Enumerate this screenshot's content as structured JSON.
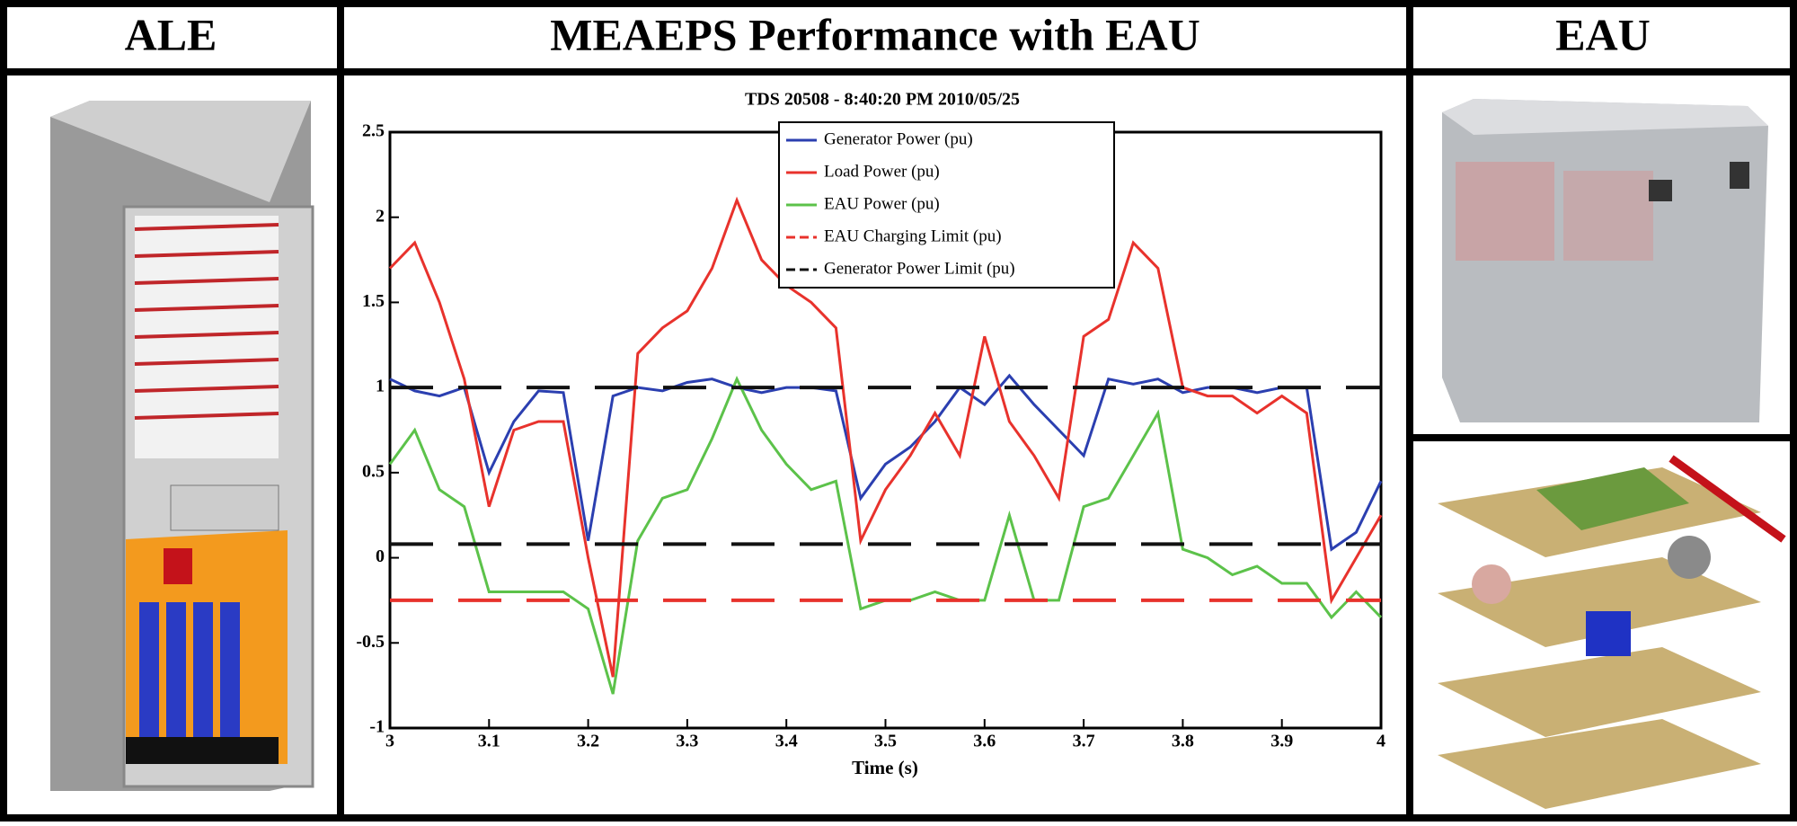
{
  "headers": {
    "left": "ALE",
    "middle": "MEAEPS Performance with EAU",
    "right": "EAU"
  },
  "chart_data": {
    "type": "line",
    "title": "TDS 20508 - 8:40:20 PM 2010/05/25",
    "xlabel": "Time (s)",
    "xlim": [
      3,
      4
    ],
    "xticks": [
      3,
      3.1,
      3.2,
      3.3,
      3.4,
      3.5,
      3.6,
      3.7,
      3.8,
      3.9,
      4
    ],
    "ylim": [
      -1,
      2.5
    ],
    "yticks": [
      -1,
      -0.5,
      0,
      0.5,
      1,
      1.5,
      2,
      2.5
    ],
    "x": [
      3,
      3.025,
      3.05,
      3.075,
      3.1,
      3.125,
      3.15,
      3.175,
      3.2,
      3.225,
      3.25,
      3.275,
      3.3,
      3.325,
      3.35,
      3.375,
      3.4,
      3.425,
      3.45,
      3.475,
      3.5,
      3.525,
      3.55,
      3.575,
      3.6,
      3.625,
      3.65,
      3.675,
      3.7,
      3.725,
      3.75,
      3.775,
      3.8,
      3.825,
      3.85,
      3.875,
      3.9,
      3.925,
      3.95,
      3.975,
      4
    ],
    "series": [
      {
        "name": "Generator Power (pu)",
        "color": "#2b3fb0",
        "values": [
          1.05,
          0.98,
          0.95,
          1.0,
          0.5,
          0.8,
          0.98,
          0.97,
          0.1,
          0.95,
          1.0,
          0.98,
          1.03,
          1.05,
          1.0,
          0.97,
          1.0,
          1.0,
          0.98,
          0.35,
          0.55,
          0.65,
          0.8,
          1.0,
          0.9,
          1.07,
          0.9,
          0.75,
          0.6,
          1.05,
          1.02,
          1.05,
          0.97,
          1.0,
          1.0,
          0.97,
          1.0,
          1.0,
          0.05,
          0.15,
          0.45
        ]
      },
      {
        "name": "Load Power (pu)",
        "color": "#e8322c",
        "values": [
          1.7,
          1.85,
          1.5,
          1.05,
          0.3,
          0.75,
          0.8,
          0.8,
          0.0,
          -0.7,
          1.2,
          1.35,
          1.45,
          1.7,
          2.1,
          1.75,
          1.6,
          1.5,
          1.35,
          0.1,
          0.4,
          0.6,
          0.85,
          0.6,
          1.3,
          0.8,
          0.6,
          0.35,
          1.3,
          1.4,
          1.85,
          1.7,
          1.0,
          0.95,
          0.95,
          0.85,
          0.95,
          0.85,
          -0.25,
          0.0,
          0.25
        ]
      },
      {
        "name": "EAU Power (pu)",
        "color": "#5cc24a",
        "values": [
          0.55,
          0.75,
          0.4,
          0.3,
          -0.2,
          -0.2,
          -0.2,
          -0.2,
          -0.3,
          -0.8,
          0.1,
          0.35,
          0.4,
          0.7,
          1.05,
          0.75,
          0.55,
          0.4,
          0.45,
          -0.3,
          -0.25,
          -0.25,
          -0.2,
          -0.25,
          -0.25,
          0.25,
          -0.25,
          -0.25,
          0.3,
          0.35,
          0.6,
          0.85,
          0.05,
          0.0,
          -0.1,
          -0.05,
          -0.15,
          -0.15,
          -0.35,
          -0.2,
          -0.35
        ]
      },
      {
        "name": "EAU Charging Limit (pu)",
        "color": "#e8322c",
        "dash": true,
        "x": [
          3,
          4
        ],
        "values": [
          -0.25,
          -0.25
        ]
      },
      {
        "name": "Generator Power Limit (pu)",
        "color": "#111111",
        "dash": true,
        "x": [
          3,
          4
        ],
        "values": [
          1,
          1
        ]
      },
      {
        "color": "#111111",
        "dash": true,
        "x": [
          3,
          4
        ],
        "values": [
          0.08,
          0.08
        ]
      }
    ]
  }
}
